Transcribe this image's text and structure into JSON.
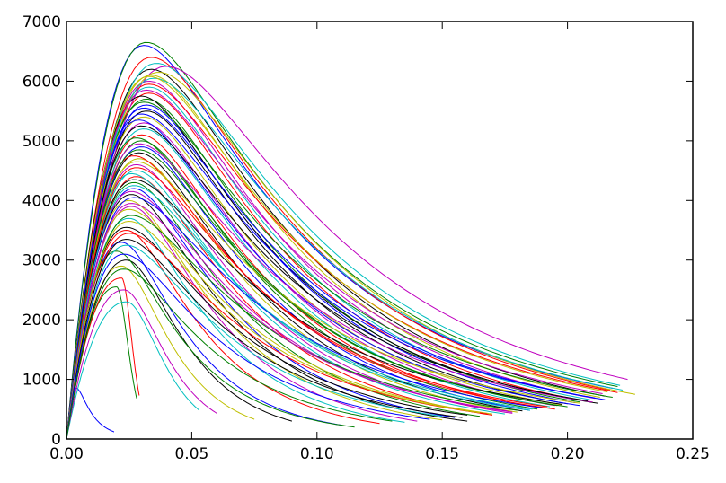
{
  "chart_data": {
    "type": "line",
    "title": "",
    "xlabel": "",
    "ylabel": "",
    "xlim": [
      0,
      0.25
    ],
    "ylim": [
      0,
      7000
    ],
    "grid": false,
    "legend": "none",
    "x_ticks": [
      "0.00",
      "0.05",
      "0.10",
      "0.15",
      "0.20",
      "0.25"
    ],
    "y_ticks": [
      "0",
      "1000",
      "2000",
      "3000",
      "4000",
      "5000",
      "6000",
      "7000"
    ],
    "colors": [
      "#0000ff",
      "#008000",
      "#ff0000",
      "#00bfbf",
      "#bf00bf",
      "#bfbf00",
      "#000000"
    ],
    "series_format": "each series: [peak_x, peak_y, end_x, end_y]",
    "series": [
      [
        0.004,
        850,
        0.019,
        120
      ],
      [
        0.02,
        2550,
        0.028,
        680
      ],
      [
        0.022,
        2700,
        0.029,
        730
      ],
      [
        0.024,
        2300,
        0.053,
        480
      ],
      [
        0.023,
        2500,
        0.06,
        430
      ],
      [
        0.022,
        2900,
        0.075,
        330
      ],
      [
        0.024,
        3000,
        0.09,
        300
      ],
      [
        0.022,
        3300,
        0.11,
        230
      ],
      [
        0.02,
        3150,
        0.115,
        200
      ],
      [
        0.024,
        3500,
        0.125,
        260
      ],
      [
        0.025,
        3700,
        0.135,
        280
      ],
      [
        0.026,
        3900,
        0.14,
        300
      ],
      [
        0.025,
        4000,
        0.15,
        320
      ],
      [
        0.026,
        4100,
        0.16,
        300
      ],
      [
        0.027,
        4200,
        0.155,
        360
      ],
      [
        0.027,
        4300,
        0.165,
        380
      ],
      [
        0.028,
        4400,
        0.17,
        400
      ],
      [
        0.028,
        4500,
        0.175,
        420
      ],
      [
        0.028,
        4600,
        0.178,
        430
      ],
      [
        0.029,
        4700,
        0.18,
        450
      ],
      [
        0.029,
        4800,
        0.182,
        470
      ],
      [
        0.03,
        4900,
        0.185,
        480
      ],
      [
        0.03,
        5000,
        0.188,
        500
      ],
      [
        0.03,
        5100,
        0.19,
        520
      ],
      [
        0.031,
        5200,
        0.193,
        540
      ],
      [
        0.031,
        5300,
        0.195,
        560
      ],
      [
        0.031,
        5400,
        0.198,
        570
      ],
      [
        0.032,
        5500,
        0.2,
        590
      ],
      [
        0.032,
        5600,
        0.203,
        610
      ],
      [
        0.032,
        5700,
        0.205,
        620
      ],
      [
        0.033,
        5800,
        0.207,
        640
      ],
      [
        0.033,
        5900,
        0.209,
        660
      ],
      [
        0.033,
        6000,
        0.211,
        680
      ],
      [
        0.034,
        6100,
        0.213,
        700
      ],
      [
        0.034,
        6200,
        0.215,
        720
      ],
      [
        0.031,
        6600,
        0.218,
        850
      ],
      [
        0.032,
        6650,
        0.22,
        880
      ],
      [
        0.034,
        6400,
        0.217,
        820
      ],
      [
        0.036,
        6300,
        0.221,
        900
      ],
      [
        0.04,
        6250,
        0.224,
        1000
      ],
      [
        0.037,
        6150,
        0.227,
        750
      ],
      [
        0.03,
        5750,
        0.212,
        600
      ],
      [
        0.029,
        5350,
        0.205,
        560
      ],
      [
        0.028,
        5050,
        0.2,
        540
      ],
      [
        0.027,
        4750,
        0.195,
        500
      ],
      [
        0.026,
        4450,
        0.185,
        480
      ],
      [
        0.026,
        4150,
        0.178,
        450
      ],
      [
        0.025,
        3850,
        0.17,
        420
      ],
      [
        0.024,
        3550,
        0.16,
        400
      ],
      [
        0.03,
        5450,
        0.215,
        660
      ],
      [
        0.031,
        5650,
        0.218,
        700
      ],
      [
        0.033,
        5950,
        0.22,
        780
      ],
      [
        0.035,
        6050,
        0.222,
        820
      ],
      [
        0.029,
        4950,
        0.21,
        620
      ],
      [
        0.028,
        4650,
        0.205,
        600
      ],
      [
        0.027,
        4350,
        0.198,
        580
      ],
      [
        0.027,
        4050,
        0.19,
        520
      ],
      [
        0.026,
        3750,
        0.18,
        480
      ],
      [
        0.025,
        3450,
        0.168,
        420
      ],
      [
        0.024,
        3250,
        0.15,
        380
      ],
      [
        0.032,
        5850,
        0.214,
        760
      ],
      [
        0.033,
        6080,
        0.216,
        790
      ],
      [
        0.03,
        5250,
        0.208,
        640
      ],
      [
        0.031,
        5550,
        0.211,
        690
      ],
      [
        0.029,
        4850,
        0.196,
        560
      ],
      [
        0.028,
        4550,
        0.192,
        540
      ],
      [
        0.027,
        4250,
        0.186,
        500
      ],
      [
        0.026,
        3950,
        0.176,
        470
      ],
      [
        0.025,
        3650,
        0.165,
        440
      ],
      [
        0.024,
        3350,
        0.158,
        360
      ],
      [
        0.023,
        3100,
        0.145,
        330
      ],
      [
        0.023,
        2850,
        0.13,
        300
      ]
    ]
  }
}
